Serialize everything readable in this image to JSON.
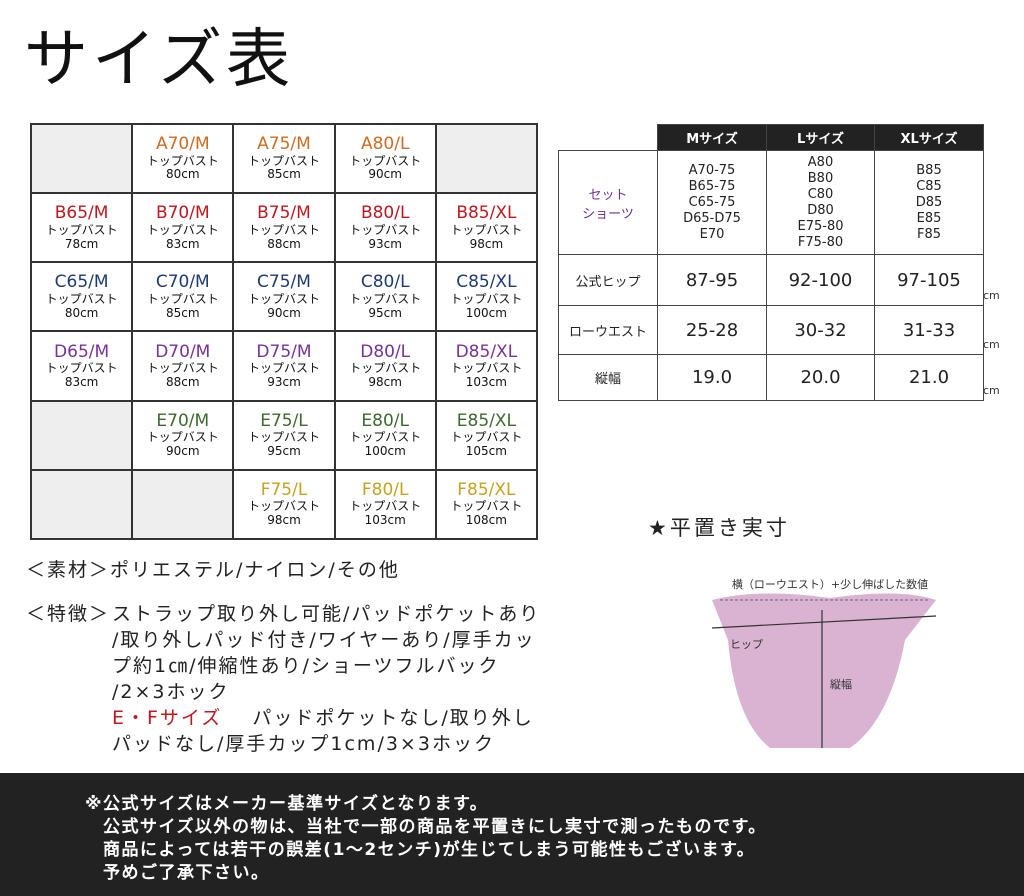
{
  "title": "サイズ表",
  "size_grid": {
    "bust_label": "トップバスト",
    "rows": [
      {
        "color": "#d46a1c",
        "cells": [
          null,
          {
            "size": "A70/M",
            "cm": "80cm"
          },
          {
            "size": "A75/M",
            "cm": "85cm"
          },
          {
            "size": "A80/L",
            "cm": "90cm"
          },
          null
        ]
      },
      {
        "color": "#c4161c",
        "cells": [
          {
            "size": "B65/M",
            "cm": "78cm"
          },
          {
            "size": "B70/M",
            "cm": "83cm"
          },
          {
            "size": "B75/M",
            "cm": "88cm"
          },
          {
            "size": "B80/L",
            "cm": "93cm"
          },
          {
            "size": "B85/XL",
            "cm": "98cm"
          }
        ]
      },
      {
        "color": "#1d3a78",
        "cells": [
          {
            "size": "C65/M",
            "cm": "80cm"
          },
          {
            "size": "C70/M",
            "cm": "85cm"
          },
          {
            "size": "C75/M",
            "cm": "90cm"
          },
          {
            "size": "C80/L",
            "cm": "95cm"
          },
          {
            "size": "C85/XL",
            "cm": "100cm"
          }
        ]
      },
      {
        "color": "#7a2f9c",
        "cells": [
          {
            "size": "D65/M",
            "cm": "83cm"
          },
          {
            "size": "D70/M",
            "cm": "88cm"
          },
          {
            "size": "D75/M",
            "cm": "93cm"
          },
          {
            "size": "D80/L",
            "cm": "98cm"
          },
          {
            "size": "D85/XL",
            "cm": "103cm"
          }
        ]
      },
      {
        "color": "#3b6a2c",
        "cells": [
          null,
          {
            "size": "E70/M",
            "cm": "90cm"
          },
          {
            "size": "E75/L",
            "cm": "95cm"
          },
          {
            "size": "E80/L",
            "cm": "100cm"
          },
          {
            "size": "E85/XL",
            "cm": "105cm"
          }
        ]
      },
      {
        "color": "#c9a21a",
        "cells": [
          null,
          null,
          {
            "size": "F75/L",
            "cm": "98cm"
          },
          {
            "size": "F80/L",
            "cm": "103cm"
          },
          {
            "size": "F85/XL",
            "cm": "108cm"
          }
        ]
      }
    ]
  },
  "spec_table": {
    "headers": [
      "Mサイズ",
      "Lサイズ",
      "XLサイズ"
    ],
    "set_row": {
      "label": [
        "セット",
        "ショーツ"
      ],
      "color": "#6a2fa0",
      "cells": [
        [
          "A70-75",
          "B65-75",
          "C65-75",
          "D65-D75",
          "E70"
        ],
        [
          "A80",
          "B80",
          "C80",
          "D80",
          "E75-80",
          "F75-80"
        ],
        [
          "B85",
          "C85",
          "D85",
          "E85",
          "F85"
        ]
      ]
    },
    "rows": [
      {
        "label": "公式ヒップ",
        "cells": [
          "87-95",
          "92-100",
          "97-105"
        ],
        "unit": "cm"
      },
      {
        "label": "ローウエスト",
        "cells": [
          "25-28",
          "30-32",
          "31-33"
        ],
        "unit": "cm"
      },
      {
        "label": "縦幅",
        "cells": [
          "19.0",
          "20.0",
          "21.0"
        ],
        "unit": "cm"
      }
    ]
  },
  "material": {
    "label": "＜素材＞",
    "text": "ポリエステル/ナイロン/その他"
  },
  "features": {
    "label": "＜特徴＞",
    "lines": [
      "ストラップ取り外し可能/パッドポケットあり",
      "/取り外しパッド付き/ワイヤーあり/厚手カッ",
      "プ約1㎝/伸縮性あり/ショーツフルバック",
      "/2×3ホック"
    ],
    "highlight": "E・Fサイズ",
    "note_lines": [
      "パッドポケットなし/取り外し",
      "パッドなし/厚手カップ1cm/3×3ホック"
    ]
  },
  "diagram": {
    "title": "★平置き実寸",
    "width_label": "横（ローウエスト）+少し伸ばした数値",
    "hip_label": "ヒップ",
    "height_label": "縦幅"
  },
  "footer": [
    "※公式サイズはメーカー基準サイズとなります。",
    "公式サイズ以外の物は、当社で一部の商品を平置きにし実寸で測ったものです。",
    "商品によっては若干の誤差(1～2センチ)が生じてしまう可能性もございます。",
    "予めご了承下さい。"
  ]
}
